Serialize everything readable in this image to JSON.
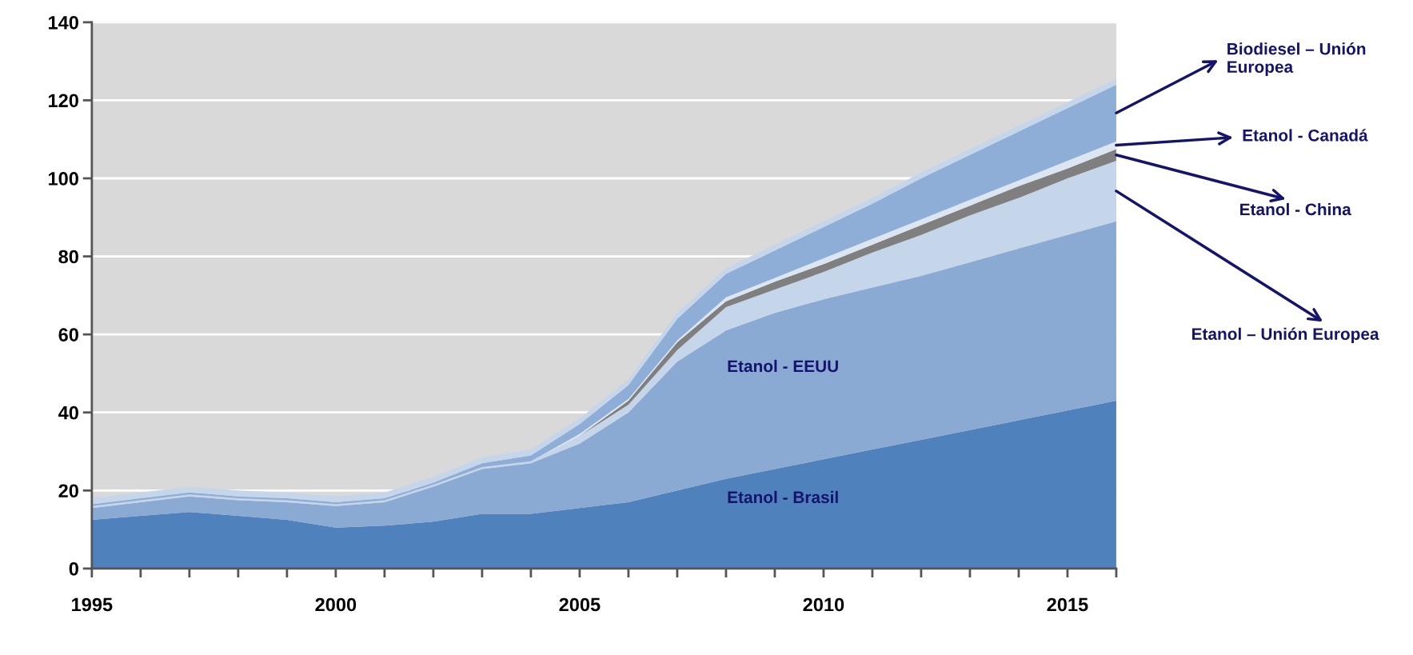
{
  "chart_data": {
    "type": "area",
    "stacked": true,
    "x": [
      1995,
      1996,
      1997,
      1998,
      1999,
      2000,
      2001,
      2002,
      2003,
      2004,
      2005,
      2006,
      2007,
      2008,
      2009,
      2010,
      2011,
      2012,
      2013,
      2014,
      2015,
      2016
    ],
    "xlim": [
      1995,
      2016
    ],
    "xticks": [
      1995,
      {
        "value": 1996,
        "label": null
      },
      {
        "value": 1997,
        "label": null
      },
      {
        "value": 1998,
        "label": null
      },
      {
        "value": 1999,
        "label": null
      },
      2000,
      {
        "value": 2001,
        "label": null
      },
      {
        "value": 2002,
        "label": null
      },
      {
        "value": 2003,
        "label": null
      },
      {
        "value": 2004,
        "label": null
      },
      2005,
      {
        "value": 2006,
        "label": null
      },
      {
        "value": 2007,
        "label": null
      },
      {
        "value": 2008,
        "label": null
      },
      {
        "value": 2009,
        "label": null
      },
      2010,
      {
        "value": 2011,
        "label": null
      },
      {
        "value": 2012,
        "label": null
      },
      {
        "value": 2013,
        "label": null
      },
      {
        "value": 2014,
        "label": null
      },
      2015,
      {
        "value": 2016,
        "label": null
      }
    ],
    "ylim": [
      0,
      140
    ],
    "yticks": [
      0,
      20,
      40,
      60,
      80,
      100,
      120,
      140
    ],
    "grid": "y",
    "series": [
      {
        "name": "Etanol - Brasil",
        "color": "#4f81bd",
        "values": [
          12.5,
          13.5,
          14.5,
          13.5,
          12.5,
          10.5,
          11,
          12,
          14,
          14,
          15.5,
          17,
          20,
          23,
          25.5,
          28,
          30.5,
          33,
          35.5,
          38,
          40.5,
          43
        ]
      },
      {
        "name": "Etanol - EEUU",
        "color": "#8aaad4",
        "values": [
          3,
          3.5,
          4,
          4,
          4.5,
          5.5,
          6,
          9,
          11.5,
          13,
          16.5,
          23,
          33,
          38,
          40,
          41,
          41.5,
          42,
          43,
          44,
          45,
          46
        ]
      },
      {
        "name": "Etanol – Unión Europea",
        "color": "#c5d5ea",
        "values": [
          0.5,
          0.5,
          0.5,
          0.5,
          0.5,
          0.5,
          0.5,
          0.5,
          0.5,
          0.5,
          2,
          2,
          3,
          6,
          6,
          7,
          9,
          10.5,
          12,
          13,
          14.5,
          15.5
        ]
      },
      {
        "name": "Etanol - China",
        "color": "#7f7f7f",
        "values": [
          0,
          0,
          0,
          0,
          0,
          0,
          0,
          0,
          0,
          0,
          0,
          1,
          2,
          1.5,
          2,
          2,
          2,
          2.5,
          2.5,
          3,
          2.5,
          3
        ]
      },
      {
        "name": "Etanol - Canadá",
        "color": "#dce6f2",
        "values": [
          0,
          0,
          0,
          0,
          0,
          0,
          0,
          0,
          0,
          0,
          0.5,
          0.5,
          0.5,
          1,
          1,
          1.5,
          1.5,
          1.5,
          1.5,
          1.5,
          2,
          2
        ]
      },
      {
        "name": "Biodiesel – Unión Europea",
        "color": "#8eadd7",
        "values": [
          0.5,
          0.5,
          0.5,
          0.5,
          0.5,
          0.5,
          0.5,
          0.5,
          1,
          1.5,
          2.5,
          3.5,
          5.5,
          6,
          7,
          8,
          9,
          10.5,
          11.5,
          12.5,
          13.5,
          14.5
        ]
      },
      {
        "color": "#c5d5ea",
        "values": [
          1.5,
          1.5,
          1.5,
          1.5,
          1.5,
          1.5,
          1.5,
          1.5,
          1.5,
          1.5,
          1.5,
          1.5,
          1.5,
          1.5,
          1.5,
          1.5,
          1.5,
          1.5,
          1.5,
          1.5,
          1.5,
          1.5
        ]
      }
    ]
  }
}
